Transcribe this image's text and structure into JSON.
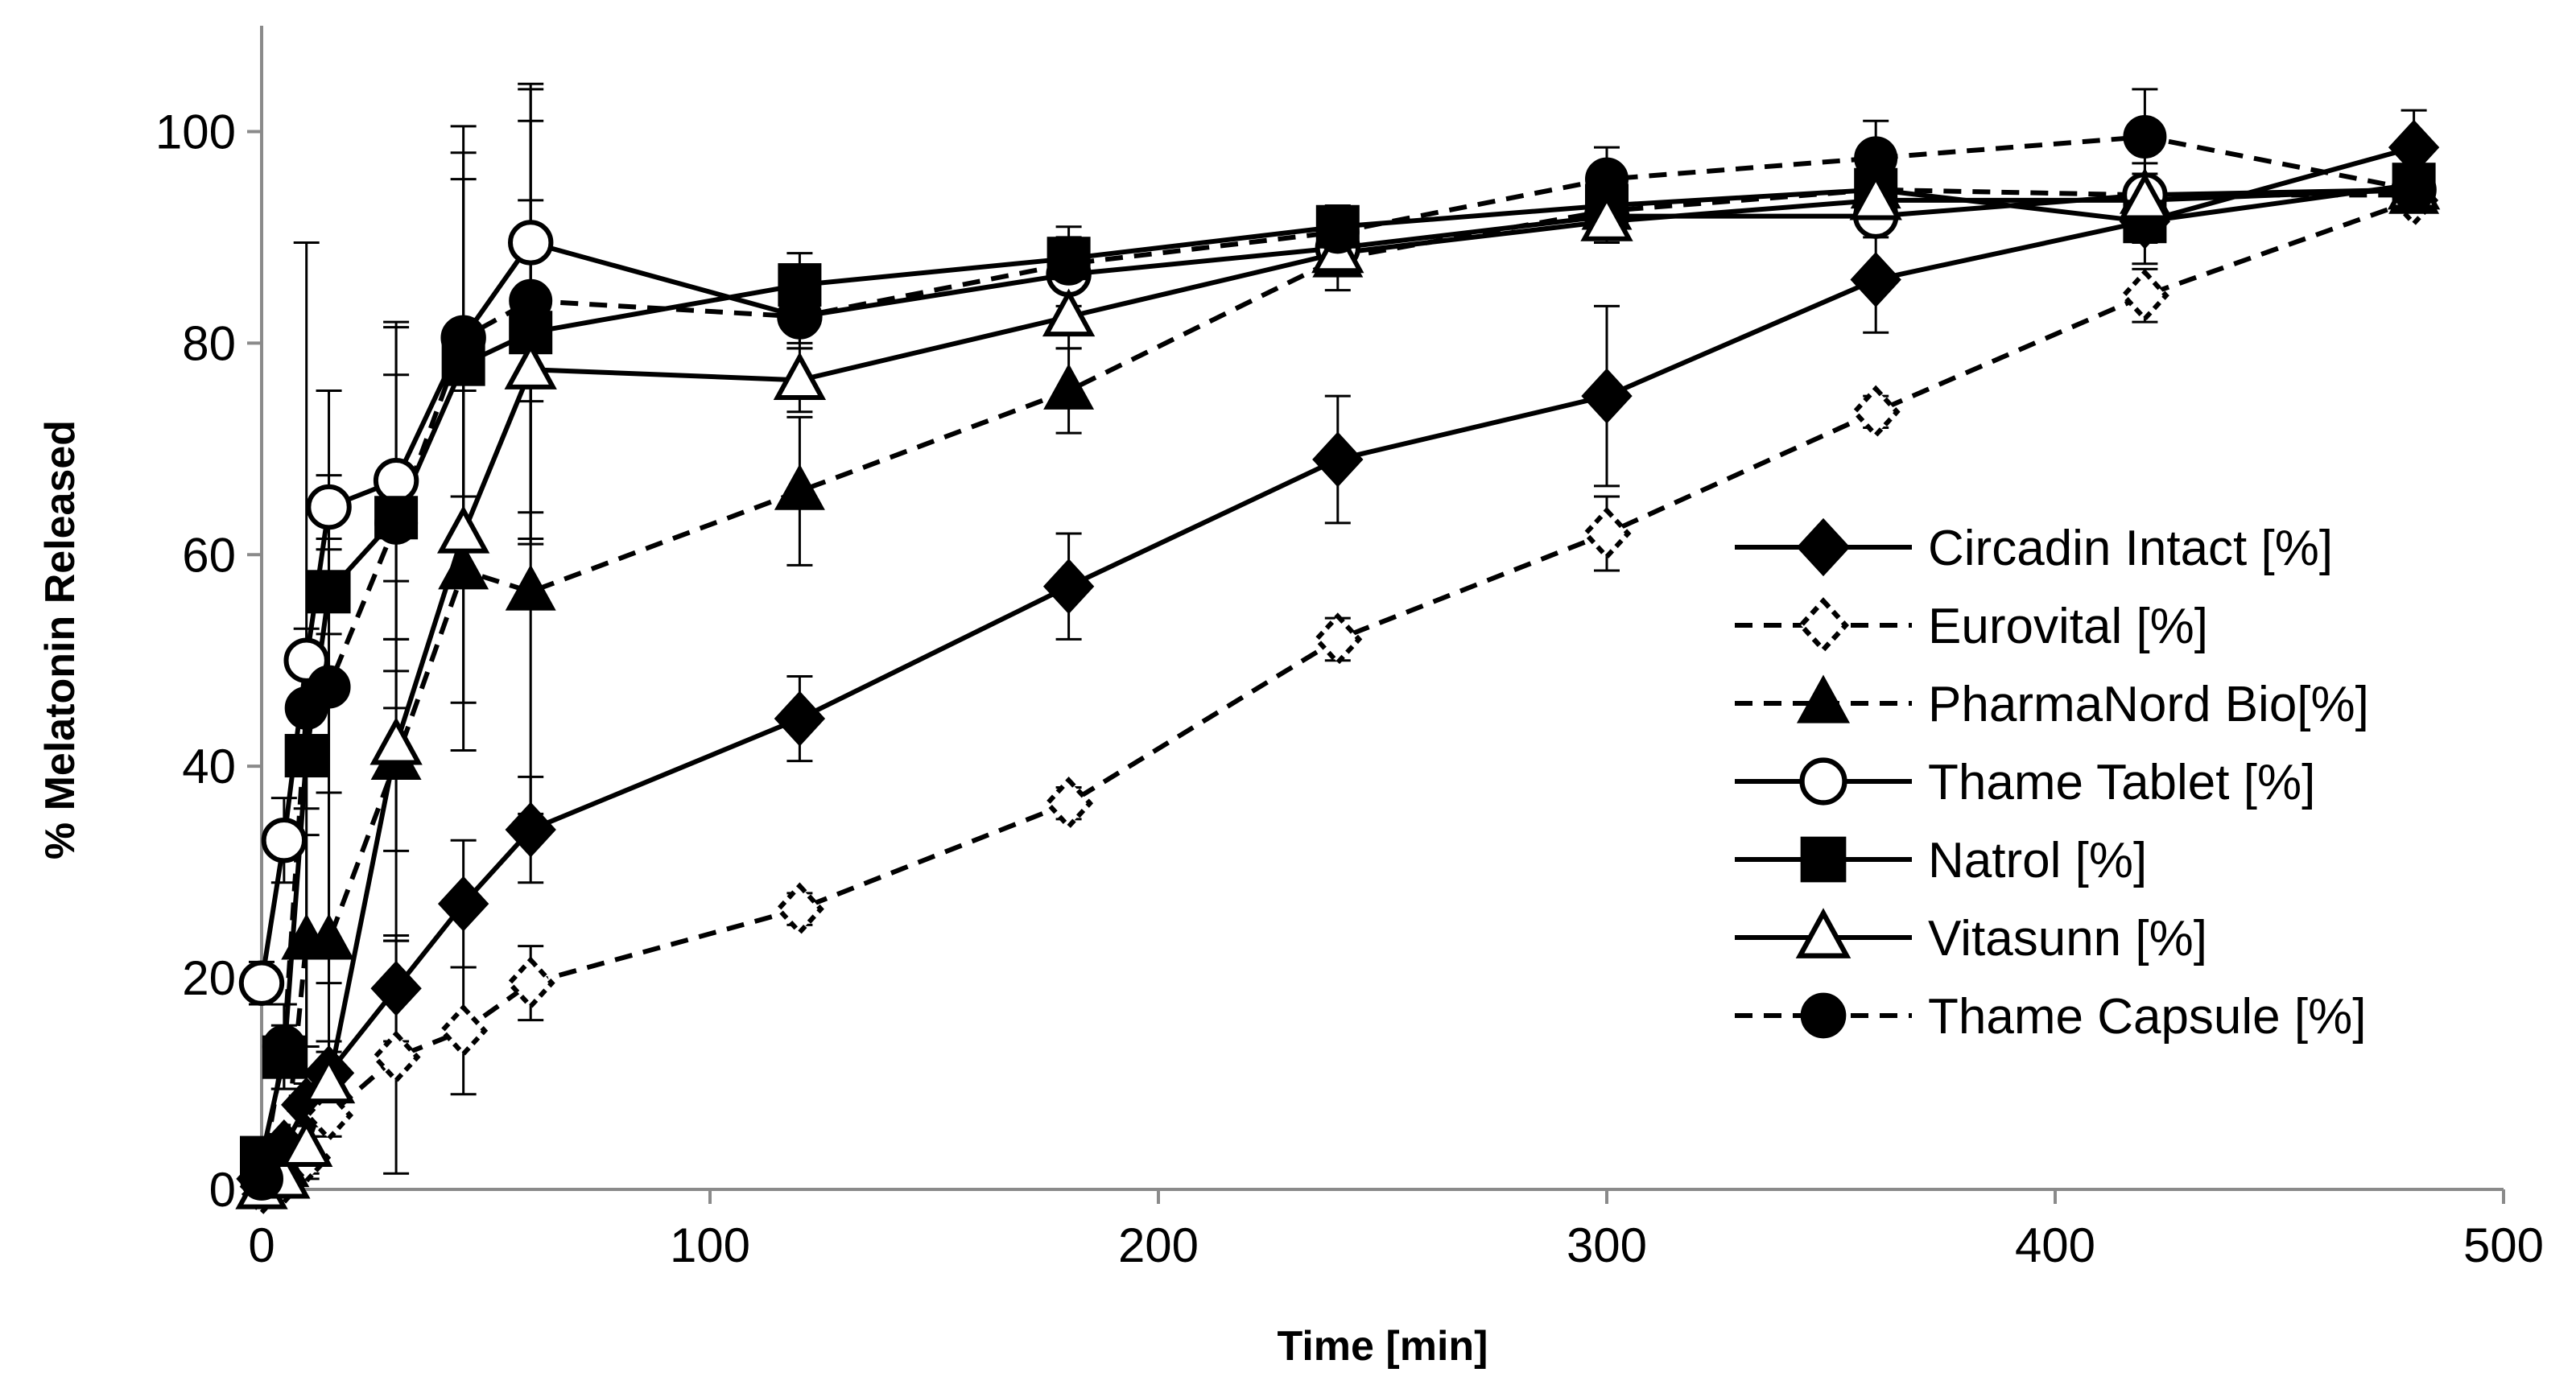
{
  "chart_data": {
    "type": "line",
    "xlabel": "Time [min]",
    "ylabel": "% Melatonin Released",
    "xlim": [
      0,
      500
    ],
    "ylim": [
      0,
      110
    ],
    "xticks": [
      0,
      100,
      200,
      300,
      400,
      500
    ],
    "yticks": [
      0,
      20,
      40,
      60,
      80,
      100
    ],
    "grid": false,
    "legend_position": "right",
    "series": [
      {
        "name": "Circadin Intact [%]",
        "line": "solid",
        "marker": "diamond-filled",
        "x": [
          0,
          5,
          10,
          15,
          30,
          45,
          60,
          120,
          180,
          240,
          300,
          360,
          420,
          480
        ],
        "y": [
          1,
          4,
          8,
          11,
          19,
          27,
          34,
          44.5,
          57,
          69,
          75,
          86,
          91.5,
          98.5
        ],
        "err": [
          0.5,
          1,
          2,
          3,
          5,
          6,
          5,
          4,
          5,
          6,
          8.5,
          5,
          4,
          3.5
        ]
      },
      {
        "name": "Eurovital [%]",
        "line": "dashed",
        "marker": "diamond-open",
        "x": [
          0,
          5,
          10,
          15,
          30,
          45,
          60,
          120,
          180,
          240,
          300,
          360,
          420,
          480
        ],
        "y": [
          0,
          1,
          3,
          7,
          12.5,
          15,
          19.5,
          26.5,
          36.5,
          52,
          62,
          73.5,
          84.5,
          93.5
        ],
        "err": [
          0.5,
          1,
          2,
          2,
          11,
          6,
          3.5,
          1.5,
          1.5,
          2,
          3.5,
          1.5,
          2.5,
          1
        ]
      },
      {
        "name": "PharmaNord Bio[%]",
        "line": "dashed",
        "marker": "triangle-filled",
        "x": [
          0,
          5,
          10,
          15,
          30,
          45,
          60,
          120,
          180,
          240,
          300,
          360,
          420,
          480
        ],
        "y": [
          0,
          2,
          23.5,
          23.5,
          40.5,
          58.5,
          56.5,
          66,
          75.5,
          88,
          92.5,
          94.5,
          94,
          94
        ],
        "err": [
          0.5,
          2,
          10,
          14,
          17,
          17,
          21,
          7,
          4,
          3,
          3,
          3,
          3,
          1.5
        ]
      },
      {
        "name": "Thame Tablet [%]",
        "line": "solid",
        "marker": "circle-open",
        "x": [
          0,
          5,
          10,
          15,
          30,
          45,
          60,
          120,
          180,
          240,
          300,
          360,
          420,
          480
        ],
        "y": [
          19.5,
          33,
          50,
          64.5,
          67,
          80.5,
          89.5,
          82.5,
          86.5,
          89,
          92,
          92,
          94,
          94.5
        ],
        "err": [
          2,
          4,
          3,
          3,
          15,
          15,
          15,
          3,
          3,
          2,
          2,
          2,
          2,
          1
        ]
      },
      {
        "name": "Natrol [%]",
        "line": "solid",
        "marker": "square-filled",
        "x": [
          0,
          5,
          10,
          15,
          30,
          45,
          60,
          120,
          180,
          240,
          300,
          360,
          420,
          480
        ],
        "y": [
          3,
          12.5,
          41,
          56.5,
          63.5,
          78,
          81,
          85.5,
          88,
          91,
          93,
          94.5,
          91.5,
          95
        ],
        "err": [
          1,
          3,
          5,
          4,
          18,
          20,
          20,
          3,
          3,
          2,
          2,
          2,
          2,
          1
        ]
      },
      {
        "name": "Vitasunn [%]",
        "line": "solid",
        "marker": "triangle-open",
        "x": [
          0,
          5,
          10,
          15,
          30,
          45,
          60,
          120,
          180,
          240,
          300,
          360,
          420,
          480
        ],
        "y": [
          0,
          1,
          4,
          10,
          42,
          62,
          77.5,
          76.5,
          82.5,
          88.5,
          91.5,
          93.5,
          93.5,
          94.5
        ],
        "err": [
          0.5,
          1,
          2,
          3,
          10,
          16,
          16,
          3,
          3,
          2,
          2,
          2,
          2,
          1
        ]
      },
      {
        "name": "Thame Capsule [%]",
        "line": "dashed",
        "marker": "circle-filled",
        "x": [
          0,
          5,
          10,
          15,
          30,
          45,
          60,
          120,
          180,
          240,
          300,
          360,
          420,
          480
        ],
        "y": [
          1,
          13.5,
          45.5,
          47.5,
          63,
          80.5,
          84,
          82.5,
          87.5,
          90.5,
          95.5,
          97.5,
          99.5,
          94.5
        ],
        "err": [
          0.5,
          4,
          44,
          28,
          14,
          20,
          20,
          2.5,
          2.5,
          2,
          3,
          3.5,
          4.5,
          1
        ]
      }
    ]
  }
}
